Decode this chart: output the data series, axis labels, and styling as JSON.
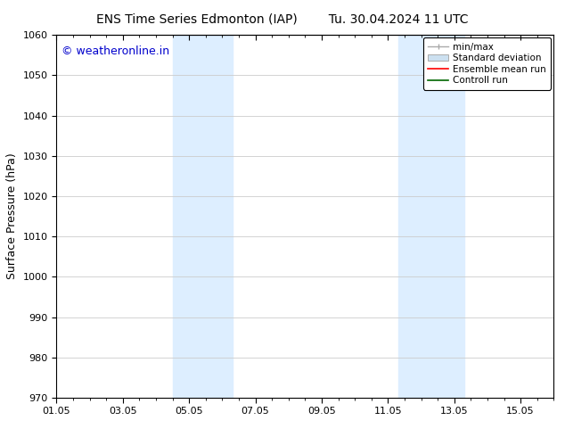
{
  "title_left": "ENS Time Series Edmonton (IAP)",
  "title_right": "Tu. 30.04.2024 11 UTC",
  "ylabel": "Surface Pressure (hPa)",
  "ylim": [
    970,
    1060
  ],
  "yticks": [
    970,
    980,
    990,
    1000,
    1010,
    1020,
    1030,
    1040,
    1050,
    1060
  ],
  "xlim": [
    0,
    15
  ],
  "xtick_labels": [
    "01.05",
    "03.05",
    "05.05",
    "07.05",
    "09.05",
    "11.05",
    "13.05",
    "15.05"
  ],
  "xtick_positions": [
    0,
    2,
    4,
    6,
    8,
    10,
    12,
    14
  ],
  "shaded_bands": [
    {
      "x_start": 3.5,
      "x_end": 5.3
    },
    {
      "x_start": 10.3,
      "x_end": 12.3
    }
  ],
  "band_color": "#ddeeff",
  "background_color": "#ffffff",
  "watermark": "© weatheronline.in",
  "watermark_color": "#0000cc",
  "legend_entries": [
    {
      "label": "min/max",
      "color": "#aaaaaa",
      "style": "errorbar"
    },
    {
      "label": "Standard deviation",
      "color": "#cce0f0",
      "style": "band"
    },
    {
      "label": "Ensemble mean run",
      "color": "#ff0000",
      "style": "line",
      "lw": 1.2
    },
    {
      "label": "Controll run",
      "color": "#006600",
      "style": "line",
      "lw": 1.2
    }
  ],
  "grid_color": "#cccccc",
  "spine_color": "#000000",
  "title_fontsize": 10,
  "tick_fontsize": 8,
  "ylabel_fontsize": 9,
  "watermark_fontsize": 9,
  "legend_fontsize": 7.5
}
